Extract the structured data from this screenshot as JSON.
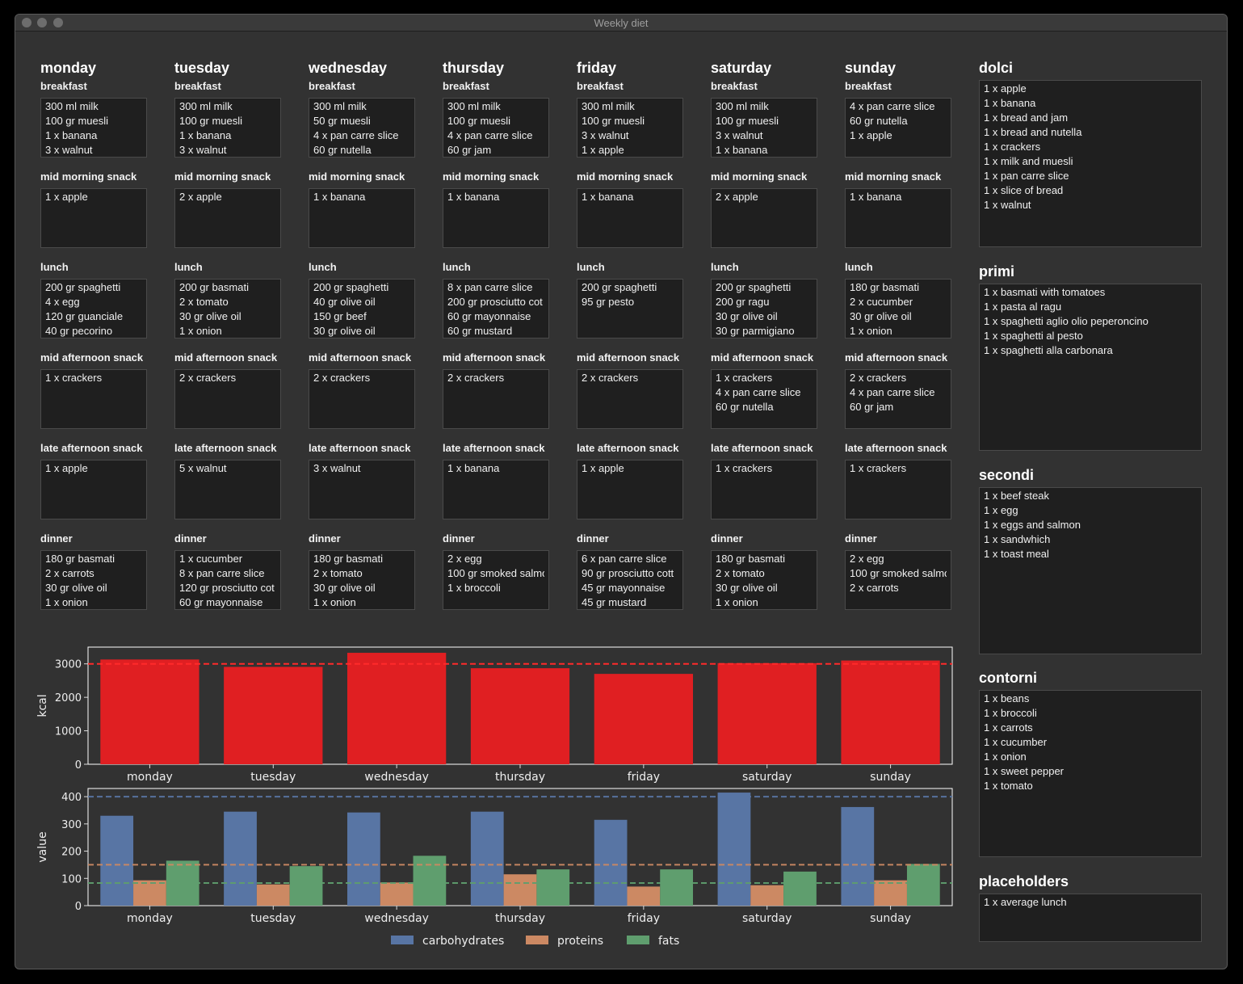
{
  "window": {
    "title": "Weekly diet"
  },
  "meal_labels": [
    "breakfast",
    "mid morning snack",
    "lunch",
    "mid afternoon snack",
    "late afternoon snack",
    "dinner"
  ],
  "days": [
    {
      "name": "monday",
      "meals": [
        [
          "300 ml milk",
          "100 gr muesli",
          "1 x banana",
          "3 x walnut"
        ],
        [
          "1 x apple"
        ],
        [
          "200 gr spaghetti",
          "4 x egg",
          "120 gr guanciale",
          "40 gr pecorino"
        ],
        [
          "1 x crackers"
        ],
        [
          "1 x apple"
        ],
        [
          "180 gr basmati",
          "2 x carrots",
          "30 gr olive oil",
          "1 x onion"
        ]
      ]
    },
    {
      "name": "tuesday",
      "meals": [
        [
          "300 ml milk",
          "100 gr muesli",
          "1 x banana",
          "3 x walnut"
        ],
        [
          "2 x apple"
        ],
        [
          "200 gr basmati",
          "2 x tomato",
          "30 gr olive oil",
          "1 x onion"
        ],
        [
          "2 x crackers"
        ],
        [
          "5 x walnut"
        ],
        [
          "1 x cucumber",
          "8 x pan carre slice",
          "120 gr prosciutto cot",
          "60 gr mayonnaise"
        ]
      ]
    },
    {
      "name": "wednesday",
      "meals": [
        [
          "300 ml milk",
          "50 gr muesli",
          "4 x pan carre slice",
          "60 gr nutella"
        ],
        [
          "1 x banana"
        ],
        [
          "200 gr spaghetti",
          "40 gr olive oil",
          "150 gr beef",
          "30 gr olive oil"
        ],
        [
          "2 x crackers"
        ],
        [
          "3 x walnut"
        ],
        [
          "180 gr basmati",
          "2 x tomato",
          "30 gr olive oil",
          "1 x onion"
        ]
      ]
    },
    {
      "name": "thursday",
      "meals": [
        [
          "300 ml milk",
          "100 gr muesli",
          "4 x pan carre slice",
          "60 gr jam"
        ],
        [
          "1 x banana"
        ],
        [
          "8 x pan carre slice",
          "200 gr prosciutto cot",
          "60 gr mayonnaise",
          "60 gr mustard"
        ],
        [
          "2 x crackers"
        ],
        [
          "1 x banana"
        ],
        [
          "2 x egg",
          "100 gr smoked salmo",
          "1 x broccoli"
        ]
      ]
    },
    {
      "name": "friday",
      "meals": [
        [
          "300 ml milk",
          "100 gr muesli",
          "3 x walnut",
          "1 x apple"
        ],
        [
          "1 x banana"
        ],
        [
          "200 gr spaghetti",
          "95 gr pesto"
        ],
        [
          "2 x crackers"
        ],
        [
          "1 x apple"
        ],
        [
          "6 x pan carre slice",
          "90 gr prosciutto cott",
          "45 gr mayonnaise",
          "45 gr mustard"
        ]
      ]
    },
    {
      "name": "saturday",
      "meals": [
        [
          "300 ml milk",
          "100 gr muesli",
          "3 x walnut",
          "1 x banana"
        ],
        [
          "2 x apple"
        ],
        [
          "200 gr spaghetti",
          "200 gr ragu",
          "30 gr olive oil",
          "30 gr parmigiano"
        ],
        [
          "1 x crackers",
          "4 x pan carre slice",
          "60 gr nutella"
        ],
        [
          "1 x crackers"
        ],
        [
          "180 gr basmati",
          "2 x tomato",
          "30 gr olive oil",
          "1 x onion"
        ]
      ]
    },
    {
      "name": "sunday",
      "meals": [
        [
          "4 x pan carre slice",
          "60 gr nutella",
          "1 x apple"
        ],
        [
          "1 x banana"
        ],
        [
          "180 gr basmati",
          "2 x cucumber",
          "30 gr olive oil",
          "1 x onion"
        ],
        [
          "2 x crackers",
          "4 x pan carre slice",
          "60 gr jam"
        ],
        [
          "1 x crackers"
        ],
        [
          "2 x egg",
          "100 gr smoked salmo",
          "2 x carrots"
        ]
      ]
    }
  ],
  "categories": [
    {
      "name": "dolci",
      "items": [
        "1 x apple",
        "1 x banana",
        "1 x bread and jam",
        "1 x bread and nutella",
        "1 x crackers",
        "1 x milk and muesli",
        "1 x pan carre slice",
        "1 x slice of bread",
        "1 x walnut"
      ]
    },
    {
      "name": "primi",
      "items": [
        "1 x basmati with tomatoes",
        "1 x pasta al ragu",
        "1 x spaghetti aglio olio peperoncino",
        "1 x spaghetti al pesto",
        "1 x spaghetti alla carbonara"
      ]
    },
    {
      "name": "secondi",
      "items": [
        "1 x beef steak",
        "1 x egg",
        "1 x eggs and salmon",
        "1 x sandwhich",
        "1 x toast meal"
      ]
    },
    {
      "name": "contorni",
      "items": [
        "1 x beans",
        "1 x broccoli",
        "1 x carrots",
        "1 x cucumber",
        "1 x onion",
        "1 x sweet pepper",
        "1 x tomato"
      ]
    },
    {
      "name": "placeholders",
      "items": [
        "1 x average lunch"
      ]
    }
  ],
  "chart_data": [
    {
      "type": "bar",
      "categories": [
        "monday",
        "tuesday",
        "wednesday",
        "thursday",
        "friday",
        "saturday",
        "sunday"
      ],
      "values": [
        3130,
        2910,
        3330,
        2870,
        2700,
        3020,
        3100
      ],
      "ylabel": "kcal",
      "ylim": [
        0,
        3500
      ],
      "yticks": [
        0,
        1000,
        2000,
        3000
      ],
      "target_line": 3000,
      "color": "#e01f22",
      "target_color": "#ff2a2a"
    },
    {
      "type": "bar",
      "categories": [
        "monday",
        "tuesday",
        "wednesday",
        "thursday",
        "friday",
        "saturday",
        "sunday"
      ],
      "series": [
        {
          "name": "carbohydrates",
          "values": [
            330,
            345,
            342,
            345,
            315,
            415,
            362
          ],
          "color": "#5875a4",
          "target": 400
        },
        {
          "name": "proteins",
          "values": [
            93,
            78,
            85,
            115,
            70,
            75,
            93
          ],
          "color": "#cc8963",
          "target": 150
        },
        {
          "name": "fats",
          "values": [
            165,
            145,
            183,
            133,
            133,
            125,
            153
          ],
          "color": "#5f9e6e",
          "target": 83
        }
      ],
      "ylabel": "value",
      "ylim": [
        0,
        430
      ],
      "yticks": [
        0,
        100,
        200,
        300,
        400
      ],
      "legend": "bottom"
    }
  ]
}
